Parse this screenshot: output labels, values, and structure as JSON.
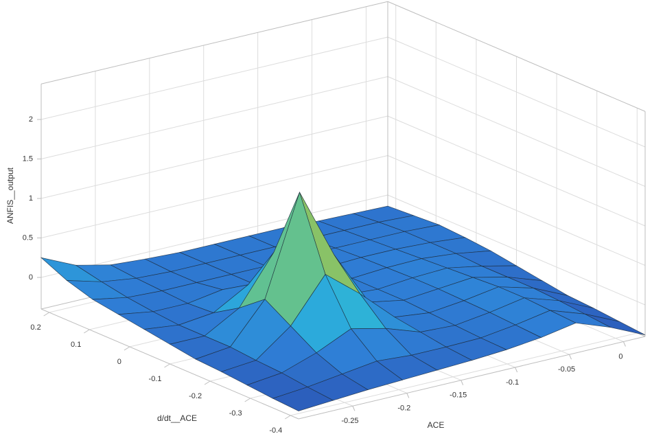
{
  "chart_data": {
    "type": "surface",
    "xlabel": "ACE",
    "ylabel": "d/dt__ACE",
    "zlabel": "ANFIS__output",
    "xlim": [
      -0.3,
      0.02
    ],
    "ylim": [
      -0.42,
      0.22
    ],
    "zlim": [
      -0.4,
      2.45
    ],
    "xticks": [
      -0.25,
      -0.2,
      -0.15,
      -0.1,
      -0.05,
      0
    ],
    "yticks": [
      0.2,
      0.1,
      0,
      -0.1,
      -0.2,
      -0.3,
      -0.4
    ],
    "zticks": [
      0,
      0.5,
      1,
      1.5,
      2
    ],
    "grid": true,
    "colormap": [
      "#2b4fb0",
      "#2f7fd6",
      "#2bb0dc",
      "#4cc0a8",
      "#a5c34a",
      "#e2cc2e",
      "#f8f315"
    ],
    "x": [
      -0.3,
      -0.268,
      -0.236,
      -0.204,
      -0.172,
      -0.14,
      -0.108,
      -0.076,
      -0.044,
      -0.012,
      0.02
    ],
    "y": [
      0.22,
      0.156,
      0.092,
      0.028,
      -0.036,
      -0.1,
      -0.164,
      -0.228,
      -0.292,
      -0.356,
      -0.42
    ],
    "z": [
      [
        0.25,
        0.05,
        -0.05,
        -0.08,
        -0.1,
        -0.1,
        -0.1,
        -0.1,
        -0.12,
        -0.13,
        -0.14
      ],
      [
        0.1,
        -0.02,
        -0.08,
        -0.1,
        -0.1,
        -0.1,
        -0.1,
        -0.1,
        -0.1,
        -0.1,
        -0.12
      ],
      [
        0,
        -0.08,
        -0.1,
        -0.1,
        -0.1,
        -0.1,
        -0.08,
        -0.08,
        -0.08,
        -0.08,
        -0.1
      ],
      [
        -0.05,
        -0.12,
        -0.12,
        -0.05,
        -0.1,
        -0.1,
        -0.08,
        -0.06,
        -0.06,
        -0.08,
        -0.12
      ],
      [
        -0.1,
        -0.15,
        -0.1,
        0.15,
        0.05,
        -0.1,
        -0.08,
        -0.05,
        -0.04,
        -0.08,
        -0.15
      ],
      [
        -0.15,
        -0.15,
        0.1,
        0.7,
        0.35,
        -0.05,
        -0.08,
        -0.04,
        -0.02,
        -0.1,
        -0.2
      ],
      [
        -0.2,
        -0.15,
        0.35,
        1.6,
        0.7,
        0,
        -0.08,
        -0.04,
        0,
        -0.1,
        -0.25
      ],
      [
        -0.22,
        -0.18,
        0.15,
        0.7,
        0.35,
        -0.05,
        -0.1,
        -0.05,
        0.02,
        -0.1,
        -0.3
      ],
      [
        -0.25,
        -0.2,
        -0.05,
        0.15,
        0.05,
        -0.1,
        -0.12,
        -0.06,
        0.02,
        -0.12,
        -0.32
      ],
      [
        -0.28,
        -0.24,
        -0.18,
        -0.12,
        -0.15,
        -0.15,
        -0.14,
        -0.08,
        0,
        -0.15,
        -0.35
      ],
      [
        -0.3,
        -0.27,
        -0.24,
        -0.22,
        -0.2,
        -0.18,
        -0.15,
        -0.1,
        -0.02,
        -0.18,
        -0.38
      ]
    ]
  }
}
